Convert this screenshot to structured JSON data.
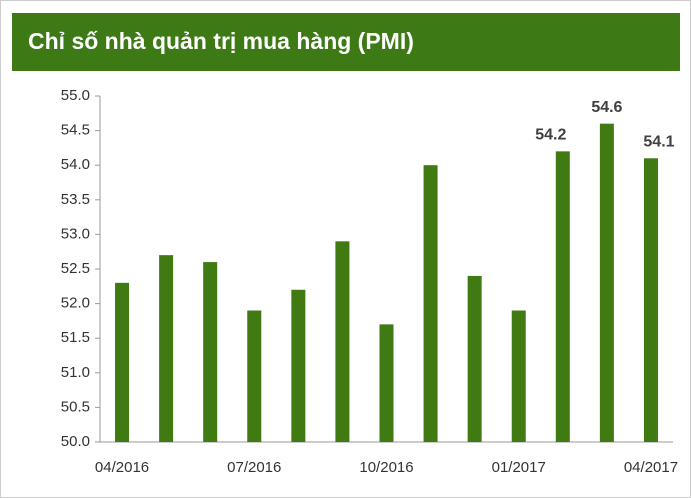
{
  "chart_data": {
    "type": "bar",
    "title": "Chỉ số nhà quản trị mua hàng (PMI)",
    "categories": [
      "04/2016",
      null,
      null,
      "07/2016",
      null,
      null,
      "10/2016",
      null,
      null,
      "01/2017",
      null,
      null,
      "04/2017"
    ],
    "values": [
      52.3,
      52.7,
      52.6,
      51.9,
      52.2,
      52.9,
      51.7,
      54.0,
      52.4,
      51.9,
      54.2,
      54.6,
      54.1
    ],
    "value_labels": [
      null,
      null,
      null,
      null,
      null,
      null,
      null,
      null,
      null,
      null,
      "54.2",
      "54.6",
      "54.1"
    ],
    "color": "#3f7a12",
    "ylim": [
      50,
      55
    ],
    "yticks": [
      {
        "value": 50,
        "label": "50.0"
      },
      50.5,
      {
        "value": 51,
        "label": "51.0"
      },
      51.5,
      {
        "value": 52,
        "label": "52.0"
      },
      52.5,
      {
        "value": 53,
        "label": "53.0"
      },
      53.5,
      {
        "value": 54,
        "label": "54.0"
      },
      54.5,
      {
        "value": 55,
        "label": "55.0"
      }
    ],
    "grid": false
  }
}
